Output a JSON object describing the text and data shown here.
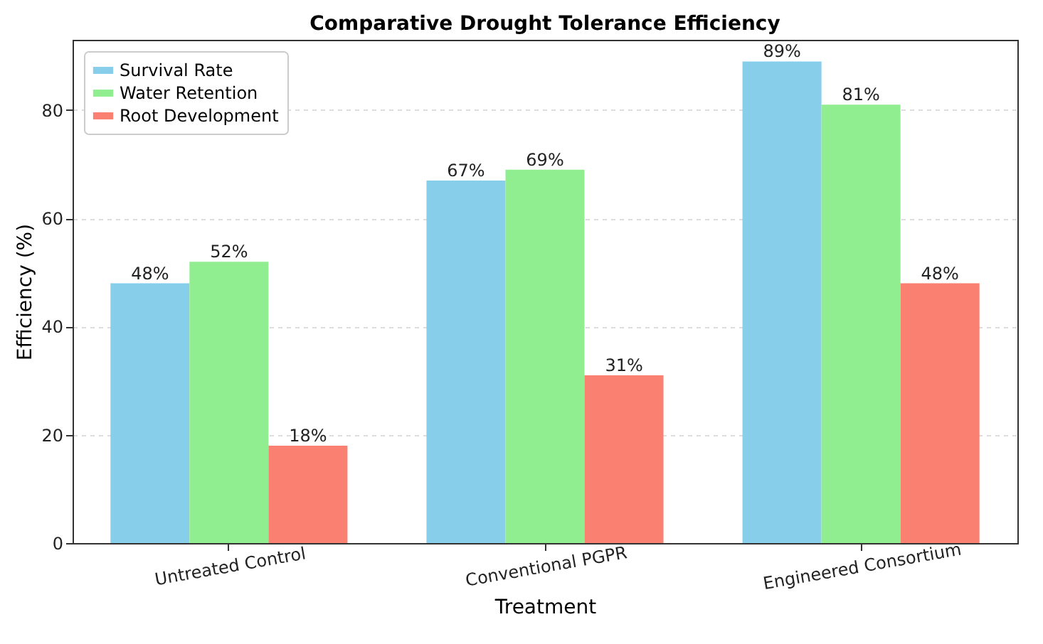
{
  "chart_data": {
    "type": "bar",
    "title": "Comparative Drought Tolerance Efficiency",
    "xlabel": "Treatment",
    "ylabel": "Efficiency (%)",
    "categories": [
      "Untreated Control",
      "Conventional PGPR",
      "Engineered Consortium"
    ],
    "series": [
      {
        "name": "Survival Rate",
        "color": "#87ceeb",
        "values": [
          48,
          67,
          89
        ],
        "value_labels": [
          "48%",
          "67%",
          "89%"
        ]
      },
      {
        "name": "Water Retention",
        "color": "#90ee90",
        "values": [
          52,
          69,
          81
        ],
        "value_labels": [
          "52%",
          "69%",
          "81%"
        ]
      },
      {
        "name": "Root Development",
        "color": "#fa8072",
        "values": [
          18,
          31,
          48
        ],
        "value_labels": [
          "18%",
          "31%",
          "48%"
        ]
      }
    ],
    "ylim": [
      0,
      93
    ],
    "yticks": [
      0,
      20,
      40,
      60,
      80
    ],
    "grid": "y",
    "legend": "top left"
  }
}
